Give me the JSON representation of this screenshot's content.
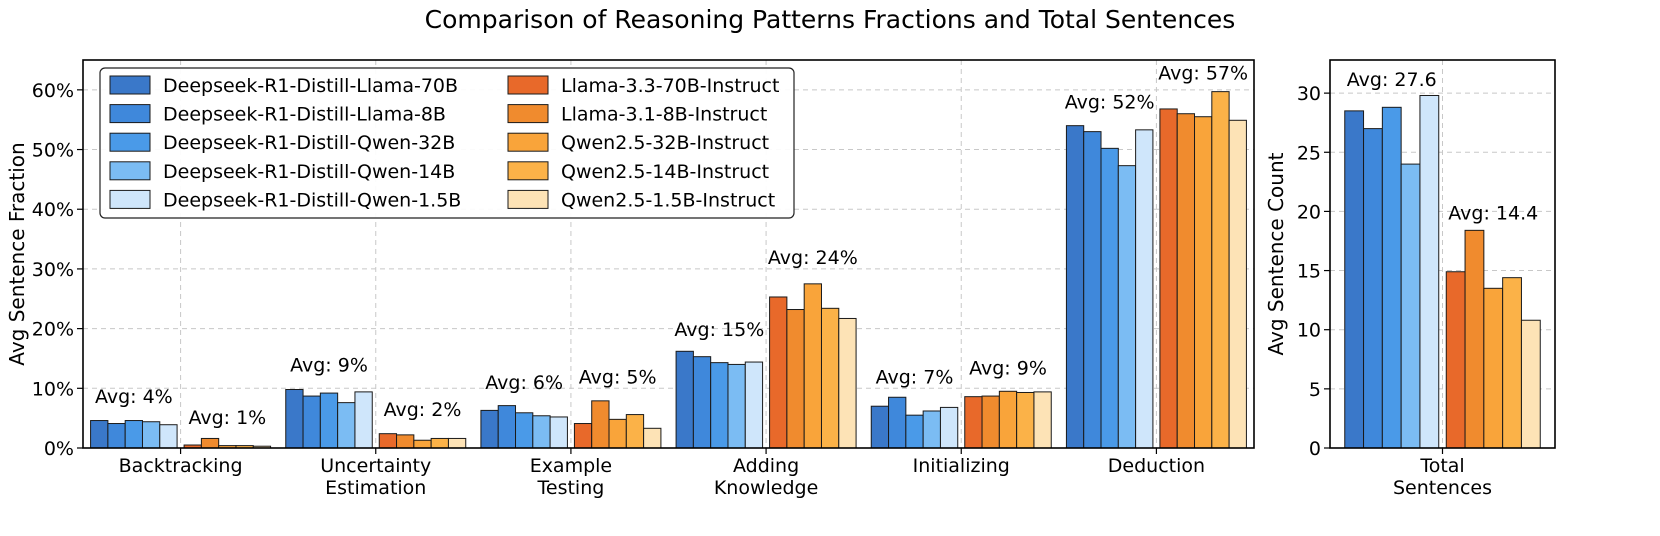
{
  "title": "Comparison of Reasoning Patterns Fractions and Total Sentences",
  "colors": {
    "deepseek": [
      "#3a78c9",
      "#3f88db",
      "#4a9ae8",
      "#7bbcf3",
      "#cfe6fb"
    ],
    "instruct": [
      "#e8692a",
      "#f08b2e",
      "#f9a43a",
      "#fbb248",
      "#fde3b6"
    ],
    "edge": "#1a1a1a",
    "grid": "#c8c8c8"
  },
  "chart_data": [
    {
      "type": "bar",
      "ylabel": "Avg Sentence Fraction",
      "ylim": [
        0,
        65
      ],
      "yticks": [
        "0%",
        "10%",
        "20%",
        "30%",
        "40%",
        "50%",
        "60%"
      ],
      "ytick_values": [
        0,
        10,
        20,
        30,
        40,
        50,
        60
      ],
      "categories": [
        "Backtracking",
        "Uncertainty\nEstimation",
        "Example\nTesting",
        "Adding\nKnowledge",
        "Initializing",
        "Deduction"
      ],
      "legend": {
        "placement": "upper-left",
        "columns": 2
      },
      "series": [
        {
          "name": "Deepseek-R1-Distill-Llama-70B",
          "group": "deepseek",
          "values": [
            4.6,
            9.8,
            6.3,
            16.2,
            7.0,
            54.0
          ]
        },
        {
          "name": "Deepseek-R1-Distill-Llama-8B",
          "group": "deepseek",
          "values": [
            4.1,
            8.7,
            7.1,
            15.3,
            8.5,
            53.0
          ]
        },
        {
          "name": "Deepseek-R1-Distill-Qwen-32B",
          "group": "deepseek",
          "values": [
            4.6,
            9.2,
            5.9,
            14.3,
            5.5,
            50.2
          ]
        },
        {
          "name": "Deepseek-R1-Distill-Qwen-14B",
          "group": "deepseek",
          "values": [
            4.4,
            7.6,
            5.4,
            14.0,
            6.2,
            47.3
          ]
        },
        {
          "name": "Deepseek-R1-Distill-Qwen-1.5B",
          "group": "deepseek",
          "values": [
            3.9,
            9.4,
            5.2,
            14.4,
            6.8,
            53.3
          ]
        },
        {
          "name": "Llama-3.3-70B-Instruct",
          "group": "instruct",
          "values": [
            0.5,
            2.4,
            4.1,
            25.3,
            8.6,
            56.8
          ]
        },
        {
          "name": "Llama-3.1-8B-Instruct",
          "group": "instruct",
          "values": [
            1.6,
            2.2,
            7.9,
            23.2,
            8.7,
            56.0
          ]
        },
        {
          "name": "Qwen2.5-32B-Instruct",
          "group": "instruct",
          "values": [
            0.4,
            1.3,
            4.8,
            27.5,
            9.5,
            55.5
          ]
        },
        {
          "name": "Qwen2.5-14B-Instruct",
          "group": "instruct",
          "values": [
            0.4,
            1.6,
            5.6,
            23.4,
            9.3,
            59.7
          ]
        },
        {
          "name": "Qwen2.5-1.5B-Instruct",
          "group": "instruct",
          "values": [
            0.3,
            1.6,
            3.3,
            21.7,
            9.4,
            54.9
          ]
        }
      ],
      "annotations": [
        {
          "category": 0,
          "group": "deepseek",
          "text": "Avg: 4%",
          "y": 7.5
        },
        {
          "category": 0,
          "group": "instruct",
          "text": "Avg: 1%",
          "y": 4.0
        },
        {
          "category": 1,
          "group": "deepseek",
          "text": "Avg: 9%",
          "y": 12.8
        },
        {
          "category": 1,
          "group": "instruct",
          "text": "Avg: 2%",
          "y": 5.4
        },
        {
          "category": 2,
          "group": "deepseek",
          "text": "Avg: 6%",
          "y": 9.9
        },
        {
          "category": 2,
          "group": "instruct",
          "text": "Avg: 5%",
          "y": 10.8
        },
        {
          "category": 3,
          "group": "deepseek",
          "text": "Avg: 15%",
          "y": 18.8
        },
        {
          "category": 3,
          "group": "instruct",
          "text": "Avg: 24%",
          "y": 30.8
        },
        {
          "category": 4,
          "group": "deepseek",
          "text": "Avg: 7%",
          "y": 10.8
        },
        {
          "category": 4,
          "group": "instruct",
          "text": "Avg: 9%",
          "y": 12.3
        },
        {
          "category": 5,
          "group": "deepseek",
          "text": "Avg: 52%",
          "y": 56.9
        },
        {
          "category": 5,
          "group": "instruct",
          "text": "Avg: 57%",
          "y": 61.7
        }
      ],
      "grid": true
    },
    {
      "type": "bar",
      "ylabel": "Avg Sentence Count",
      "ylim": [
        0,
        32.8
      ],
      "yticks": [
        "0",
        "5",
        "10",
        "15",
        "20",
        "25",
        "30"
      ],
      "ytick_values": [
        0,
        5,
        10,
        15,
        20,
        25,
        30
      ],
      "categories": [
        "Total\nSentences"
      ],
      "series_values": [
        28.5,
        27.0,
        28.8,
        24.0,
        29.8,
        14.9,
        18.4,
        13.5,
        14.4,
        10.8
      ],
      "annotations": [
        {
          "group": "deepseek",
          "text": "Avg: 27.6",
          "y": 30.6
        },
        {
          "group": "instruct",
          "text": "Avg: 14.4",
          "y": 19.3
        }
      ],
      "grid": true
    }
  ]
}
